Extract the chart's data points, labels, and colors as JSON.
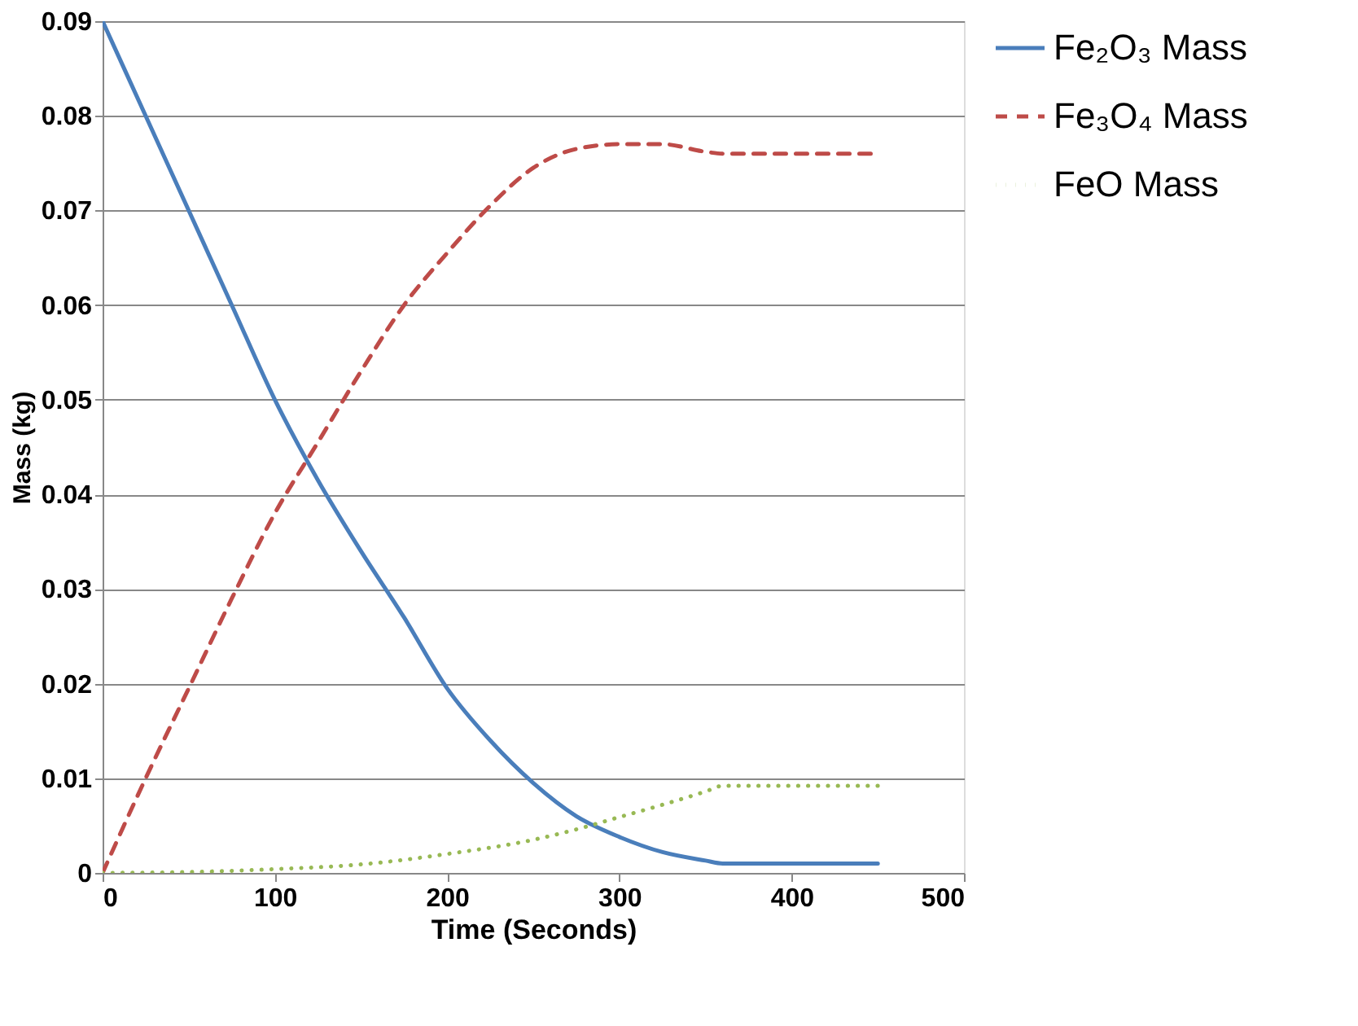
{
  "chart_data": {
    "type": "line",
    "xlabel": "Time (Seconds)",
    "ylabel": "Mass (kg)",
    "xlim": [
      0,
      500
    ],
    "xticks": [
      0,
      100,
      200,
      300,
      400,
      500
    ],
    "ylim": [
      0,
      0.09
    ],
    "yticks": [
      0,
      0.01,
      0.02,
      0.03,
      0.04,
      0.05,
      0.06,
      0.07,
      0.08,
      0.09
    ],
    "grid": "y",
    "legend": "right",
    "marker": "none",
    "series": [
      {
        "name": "Fe₂O₃ Mass",
        "color": "#4a7ebb",
        "line_style": "solid",
        "x": [
          0,
          25,
          50,
          75,
          100,
          125,
          150,
          175,
          200,
          225,
          250,
          275,
          300,
          325,
          350,
          360,
          450
        ],
        "values": [
          0.09,
          0.08,
          0.07,
          0.06,
          0.05,
          0.0415,
          0.034,
          0.027,
          0.0195,
          0.014,
          0.0095,
          0.006,
          0.0038,
          0.0022,
          0.0013,
          0.001,
          0.001
        ]
      },
      {
        "name": "Fe₃O₄ Mass",
        "color": "#be4b48",
        "line_style": "dashed",
        "x": [
          0,
          25,
          50,
          75,
          100,
          125,
          150,
          175,
          200,
          225,
          250,
          275,
          300,
          325,
          350,
          360,
          450
        ],
        "values": [
          0,
          0.01,
          0.0195,
          0.029,
          0.038,
          0.0455,
          0.053,
          0.06,
          0.0655,
          0.0705,
          0.0745,
          0.0765,
          0.077,
          0.077,
          0.0762,
          0.076,
          0.076
        ]
      },
      {
        "name": "FeO Mass",
        "color": "#98b954",
        "line_style": "dotted",
        "x": [
          0,
          50,
          100,
          150,
          200,
          250,
          275,
          300,
          325,
          350,
          360,
          450
        ],
        "values": [
          0,
          0.0001,
          0.0004,
          0.0009,
          0.002,
          0.0035,
          0.0046,
          0.0059,
          0.0072,
          0.0086,
          0.0092,
          0.0092
        ]
      }
    ]
  }
}
